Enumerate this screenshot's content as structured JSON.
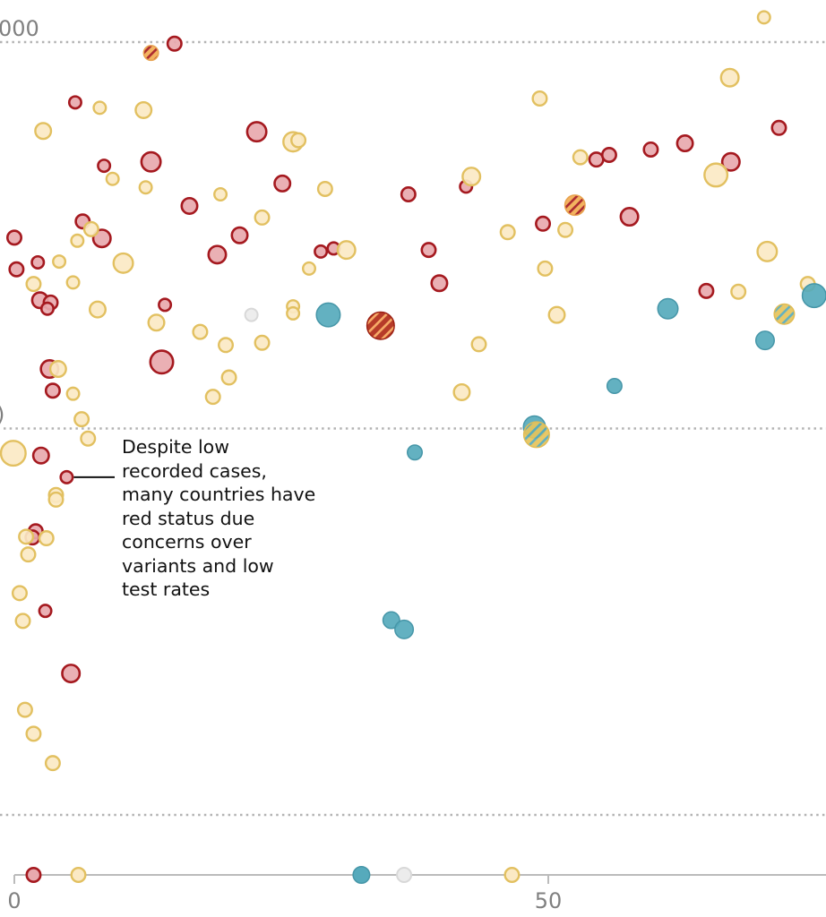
{
  "chart_data": {
    "type": "scatter",
    "title": "",
    "xlabel": "",
    "ylabel": "",
    "x_range": [
      0,
      76.5
    ],
    "y_range": [
      0,
      1055
    ],
    "grid": true,
    "x_ticks": [
      {
        "value": 0,
        "label": "0"
      },
      {
        "value": 50,
        "label": "50"
      }
    ],
    "y_gridlines": [
      {
        "value": 1000,
        "label": "000"
      },
      {
        "value": 500,
        "label": ")"
      },
      {
        "value": 0,
        "label": ""
      }
    ],
    "colors": {
      "red_fill": "#e8a9ae",
      "red_stroke": "#a5191f",
      "amber_fill": "#fbe9c4",
      "amber_stroke": "#e2c060",
      "green_fill": "#56aabc",
      "green_stroke": "#4696a8",
      "grey_fill": "#ececec",
      "grey_stroke": "#d8d8d8",
      "stripe_amber_fill": "#f2ac52",
      "stripe_amber_line": "#a5191f",
      "stripe_red_fill": "#b02a17",
      "stripe_red_line": "#f6a45a",
      "stripe_green_fill": "#e6c35a",
      "stripe_green_line": "#56aabc",
      "gridline": "#b3b3b3",
      "axis": "#bbbbbb"
    },
    "series": [
      {
        "name": "red",
        "points": [
          [
            15.0,
            998,
            9
          ],
          [
            5.7,
            922,
            8
          ],
          [
            22.7,
            884,
            12
          ],
          [
            12.8,
            845,
            12
          ],
          [
            8.4,
            840,
            8
          ],
          [
            25.1,
            817,
            10
          ],
          [
            16.4,
            788,
            10
          ],
          [
            6.4,
            768,
            9
          ],
          [
            8.2,
            746,
            11
          ],
          [
            0.0,
            747,
            9
          ],
          [
            21.1,
            750,
            10
          ],
          [
            19.0,
            725,
            11
          ],
          [
            0.2,
            706,
            9
          ],
          [
            2.2,
            715,
            8
          ],
          [
            2.4,
            666,
            10
          ],
          [
            3.4,
            663,
            9
          ],
          [
            3.1,
            655,
            8
          ],
          [
            14.1,
            660,
            8
          ],
          [
            28.7,
            729,
            8
          ],
          [
            29.9,
            733,
            8
          ],
          [
            36.9,
            803,
            9
          ],
          [
            38.8,
            731,
            9
          ],
          [
            42.3,
            813,
            8
          ],
          [
            39.8,
            688,
            10
          ],
          [
            13.8,
            586,
            14
          ],
          [
            3.3,
            577,
            11
          ],
          [
            3.6,
            549,
            9
          ],
          [
            2.5,
            465,
            10
          ],
          [
            4.9,
            437,
            8
          ],
          [
            2.0,
            367,
            9
          ],
          [
            1.7,
            359,
            9
          ],
          [
            2.9,
            264,
            8
          ],
          [
            5.3,
            183,
            11
          ],
          [
            54.5,
            848,
            9
          ],
          [
            55.7,
            854,
            9
          ],
          [
            59.6,
            861,
            9
          ],
          [
            62.8,
            869,
            10
          ],
          [
            71.6,
            889,
            9
          ],
          [
            67.1,
            845,
            11
          ],
          [
            57.6,
            774,
            11
          ],
          [
            49.5,
            765,
            9
          ],
          [
            64.8,
            678,
            9
          ]
        ]
      },
      {
        "name": "amber",
        "points": [
          [
            70.2,
            1032,
            8
          ],
          [
            8.0,
            915,
            8
          ],
          [
            12.1,
            912,
            10
          ],
          [
            2.7,
            885,
            10
          ],
          [
            26.1,
            871,
            12
          ],
          [
            26.6,
            873,
            9
          ],
          [
            9.2,
            823,
            8
          ],
          [
            12.3,
            812,
            8
          ],
          [
            29.1,
            810,
            9
          ],
          [
            19.3,
            803,
            8
          ],
          [
            23.2,
            773,
            9
          ],
          [
            7.2,
            758,
            9
          ],
          [
            5.9,
            743,
            8
          ],
          [
            10.2,
            714,
            12
          ],
          [
            4.2,
            716,
            8
          ],
          [
            1.8,
            687,
            9
          ],
          [
            5.5,
            689,
            8
          ],
          [
            7.8,
            654,
            10
          ],
          [
            13.3,
            637,
            10
          ],
          [
            27.6,
            707,
            8
          ],
          [
            31.1,
            731,
            11
          ],
          [
            26.1,
            658,
            8
          ],
          [
            26.1,
            649,
            8
          ],
          [
            17.4,
            625,
            9
          ],
          [
            19.8,
            608,
            9
          ],
          [
            23.2,
            611,
            9
          ],
          [
            42.8,
            826,
            11
          ],
          [
            43.5,
            609,
            9
          ],
          [
            41.9,
            547,
            10
          ],
          [
            4.1,
            577,
            10
          ],
          [
            20.1,
            566,
            9
          ],
          [
            18.6,
            541,
            9
          ],
          [
            5.5,
            545,
            8
          ],
          [
            6.3,
            512,
            9
          ],
          [
            6.9,
            487,
            9
          ],
          [
            -0.1,
            468,
            15
          ],
          [
            3.9,
            414,
            9
          ],
          [
            3.9,
            408,
            9
          ],
          [
            1.1,
            360,
            9
          ],
          [
            3.0,
            358,
            9
          ],
          [
            1.3,
            337,
            9
          ],
          [
            0.5,
            287,
            9
          ],
          [
            0.8,
            251,
            9
          ],
          [
            1.0,
            136,
            9
          ],
          [
            1.8,
            105,
            9
          ],
          [
            3.6,
            67,
            9
          ],
          [
            49.2,
            927,
            9
          ],
          [
            67.0,
            954,
            11
          ],
          [
            53.0,
            851,
            9
          ],
          [
            65.7,
            828,
            14
          ],
          [
            46.2,
            754,
            9
          ],
          [
            51.6,
            757,
            9
          ],
          [
            70.5,
            729,
            12
          ],
          [
            49.7,
            707,
            9
          ],
          [
            50.8,
            647,
            10
          ],
          [
            67.8,
            677,
            9
          ],
          [
            74.3,
            687,
            9
          ]
        ]
      },
      {
        "name": "green",
        "points": [
          [
            29.4,
            647,
            14
          ],
          [
            37.5,
            469,
            9
          ],
          [
            35.3,
            252,
            10
          ],
          [
            36.5,
            240,
            11
          ],
          [
            48.7,
            502,
            13
          ],
          [
            74.9,
            672,
            14
          ],
          [
            61.2,
            655,
            12
          ],
          [
            70.3,
            614,
            11
          ],
          [
            56.2,
            555,
            9
          ]
        ]
      },
      {
        "name": "grey",
        "points": [
          [
            22.2,
            647,
            8
          ]
        ]
      },
      {
        "name": "stripe-amber",
        "points": [
          [
            12.8,
            986,
            9
          ],
          [
            52.5,
            789,
            12
          ]
        ]
      },
      {
        "name": "stripe-red",
        "points": [
          [
            34.3,
            633,
            16
          ]
        ]
      },
      {
        "name": "stripe-green",
        "points": [
          [
            48.9,
            492,
            15
          ],
          [
            72.1,
            648,
            12
          ]
        ]
      }
    ],
    "baseline_strip": [
      {
        "x": 1.8,
        "series": "red",
        "size": 9
      },
      {
        "x": 6.0,
        "series": "amber",
        "size": 9
      },
      {
        "x": 32.5,
        "series": "green",
        "size": 10
      },
      {
        "x": 36.5,
        "series": "grey",
        "size": 9
      },
      {
        "x": 46.6,
        "series": "amber",
        "size": 9
      }
    ],
    "annotation": {
      "lines": [
        "Despite low",
        "recorded cases,",
        "many countries have",
        "red status due",
        "concerns over",
        "variants and low",
        "test rates"
      ],
      "target": {
        "x": 4.9,
        "y": 437
      }
    }
  }
}
